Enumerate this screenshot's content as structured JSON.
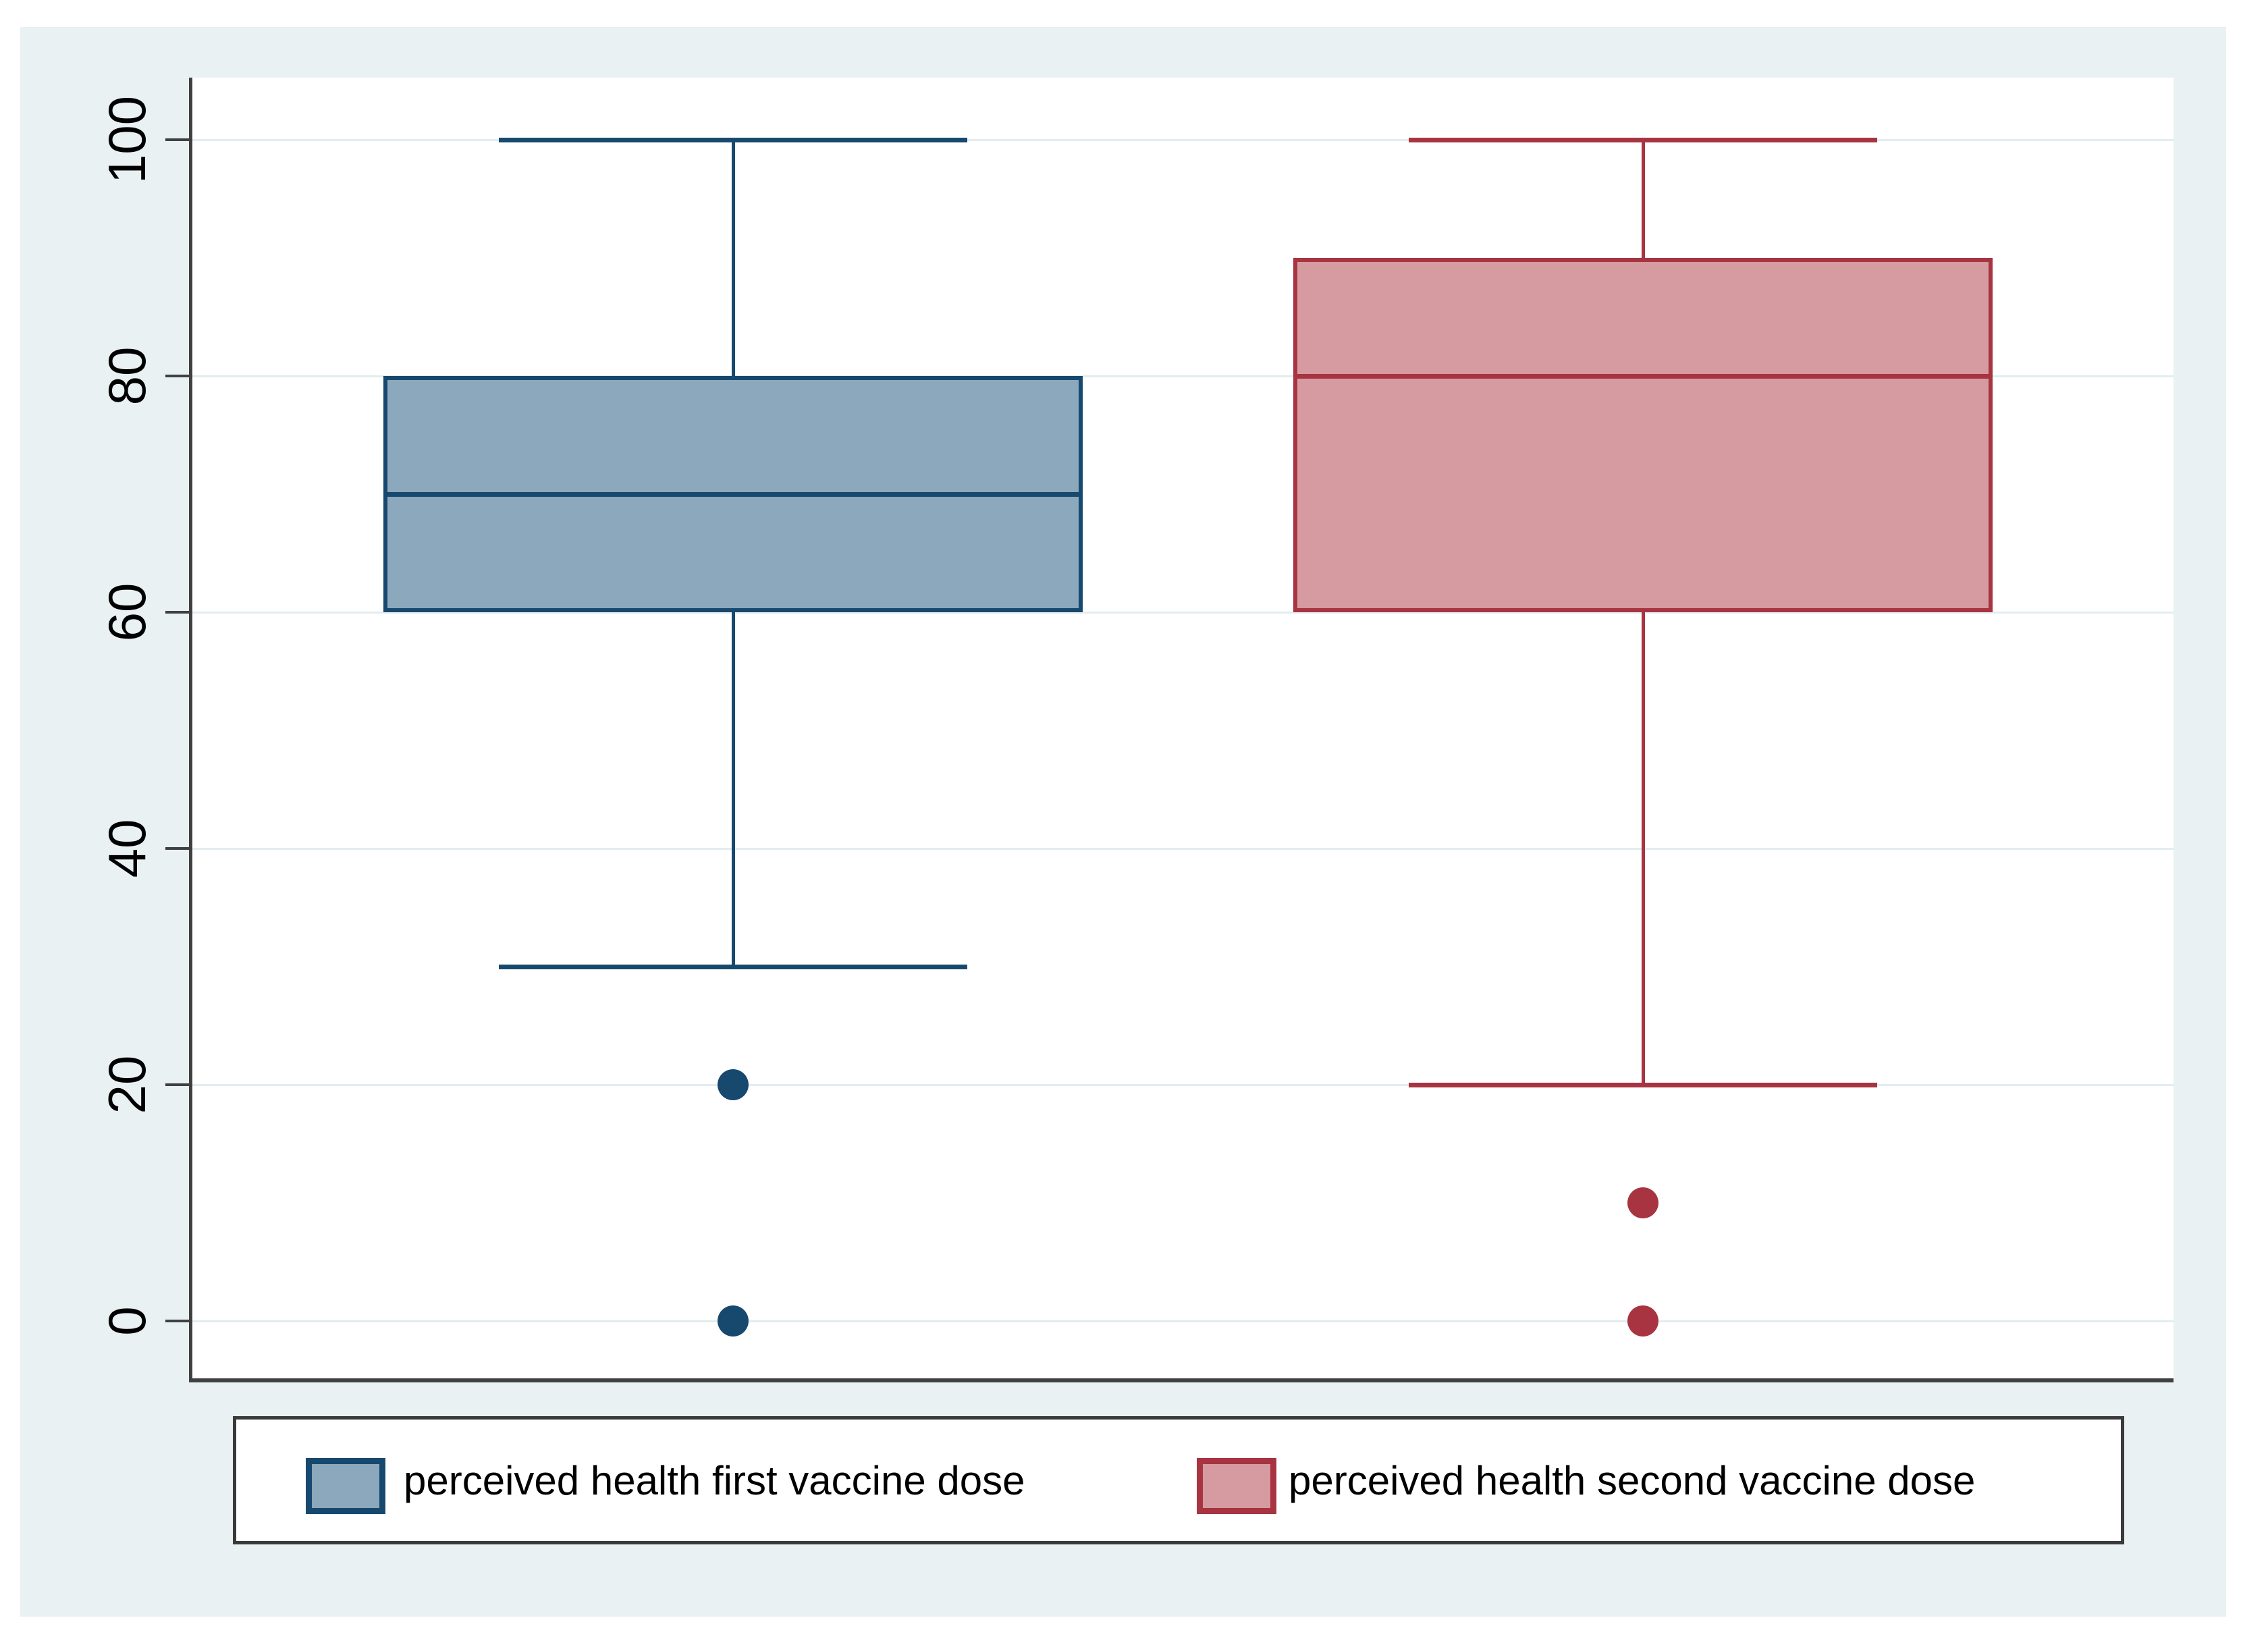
{
  "chart_data": {
    "type": "box",
    "orientation": "vertical",
    "title": "",
    "xlabel": "",
    "ylabel": "",
    "y_ticks": [
      0,
      20,
      40,
      60,
      80,
      100
    ],
    "ylim": [
      -5,
      105
    ],
    "grid": true,
    "legend_position": "bottom",
    "series": [
      {
        "name": "perceived health first vaccine dose",
        "fill_color": "#8ca8bc",
        "border_color": "#17496f",
        "stats": {
          "lower_whisker": 30,
          "q1": 60,
          "median": 70,
          "q3": 80,
          "upper_whisker": 100
        },
        "outliers": [
          20,
          0
        ]
      },
      {
        "name": "perceived health second vaccine dose",
        "fill_color": "#d69ba1",
        "border_color": "#a73440",
        "stats": {
          "lower_whisker": 20,
          "q1": 60,
          "median": 80,
          "q3": 90,
          "upper_whisker": 100
        },
        "outliers": [
          10,
          0
        ]
      }
    ],
    "colors": {
      "graph_background": "#e9f1f2",
      "plot_background": "#ffffff",
      "gridline": "#e2edef",
      "axis": "#404040",
      "tick_label": "#000000",
      "legend_background": "#ffffff",
      "legend_border": "#3a3a3a"
    }
  }
}
